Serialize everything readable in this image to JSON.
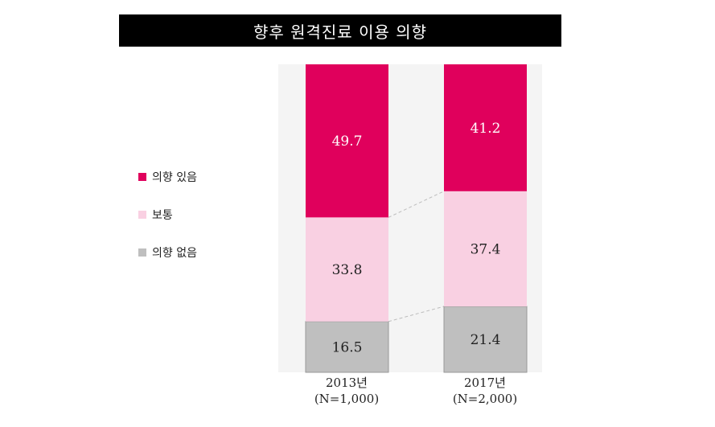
{
  "chart_data": {
    "type": "bar",
    "stacked": true,
    "title": "향후 원격진료 이용 의향",
    "categories": [
      "2013년",
      "2017년"
    ],
    "category_sublabels": [
      "(N=1,000)",
      "(N=2,000)"
    ],
    "series": [
      {
        "name": "의향 있음",
        "values": [
          49.7,
          41.2
        ],
        "color": "#e0005c"
      },
      {
        "name": "보통",
        "values": [
          33.8,
          37.4
        ],
        "color": "#f9d0e2"
      },
      {
        "name": "의향 없음",
        "values": [
          16.5,
          21.4
        ],
        "color": "#bfbfbf"
      }
    ],
    "value_labels": [
      [
        "49.7",
        "41.2"
      ],
      [
        "33.8",
        "37.4"
      ],
      [
        "16.5",
        "21.4"
      ]
    ],
    "ylim": [
      0,
      100
    ],
    "legend_position": "left",
    "grid": false
  }
}
